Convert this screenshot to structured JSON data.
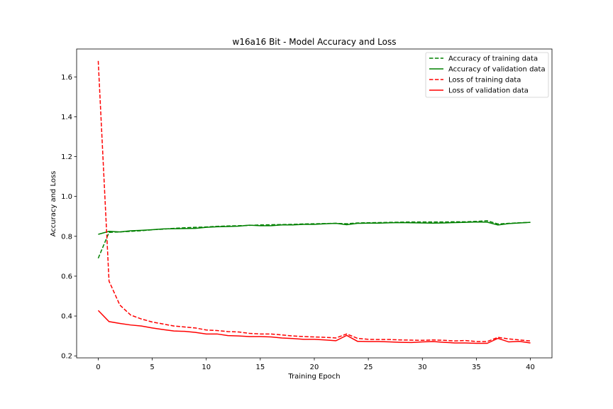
{
  "chart_data": {
    "type": "line",
    "title": "w16a16 Bit - Model Accuracy and Loss",
    "xlabel": "Training Epoch",
    "ylabel": "Accuracy and Loss",
    "xlim": [
      -2,
      42
    ],
    "ylim": [
      0.19,
      1.74
    ],
    "xticks": [
      0,
      5,
      10,
      15,
      20,
      25,
      30,
      35,
      40
    ],
    "yticks": [
      0.2,
      0.4,
      0.6,
      0.8,
      1.0,
      1.2,
      1.4,
      1.6
    ],
    "ytick_labels": [
      "0.2",
      "0.4",
      "0.6",
      "0.8",
      "1.0",
      "1.2",
      "1.4",
      "1.6"
    ],
    "grid": false,
    "legend_position": "top-right",
    "x": [
      0,
      1,
      2,
      3,
      4,
      5,
      6,
      7,
      8,
      9,
      10,
      11,
      12,
      13,
      14,
      15,
      16,
      17,
      18,
      19,
      20,
      21,
      22,
      23,
      24,
      25,
      26,
      27,
      28,
      29,
      30,
      31,
      32,
      33,
      34,
      35,
      36,
      37,
      38,
      39,
      40
    ],
    "series": [
      {
        "name": "Accuracy of training data",
        "color": "#008000",
        "dash": "dashed",
        "values": [
          0.69,
          0.82,
          0.822,
          0.825,
          0.828,
          0.833,
          0.836,
          0.84,
          0.843,
          0.845,
          0.847,
          0.85,
          0.852,
          0.853,
          0.855,
          0.857,
          0.858,
          0.859,
          0.86,
          0.862,
          0.863,
          0.864,
          0.865,
          0.863,
          0.867,
          0.868,
          0.869,
          0.87,
          0.871,
          0.872,
          0.872,
          0.872,
          0.872,
          0.873,
          0.873,
          0.875,
          0.878,
          0.862,
          0.865,
          0.868,
          0.87
        ]
      },
      {
        "name": "Accuracy of validation data",
        "color": "#008000",
        "dash": "solid",
        "values": [
          0.81,
          0.825,
          0.822,
          0.828,
          0.83,
          0.833,
          0.837,
          0.838,
          0.839,
          0.84,
          0.845,
          0.848,
          0.849,
          0.851,
          0.856,
          0.853,
          0.853,
          0.857,
          0.857,
          0.86,
          0.86,
          0.863,
          0.865,
          0.858,
          0.865,
          0.866,
          0.866,
          0.868,
          0.869,
          0.868,
          0.867,
          0.866,
          0.867,
          0.869,
          0.87,
          0.872,
          0.871,
          0.857,
          0.864,
          0.867,
          0.87
        ]
      },
      {
        "name": "Loss of training data",
        "color": "#ff0000",
        "dash": "dashed",
        "values": [
          1.68,
          0.575,
          0.455,
          0.405,
          0.385,
          0.37,
          0.36,
          0.35,
          0.345,
          0.34,
          0.33,
          0.327,
          0.322,
          0.32,
          0.313,
          0.31,
          0.31,
          0.305,
          0.3,
          0.297,
          0.295,
          0.293,
          0.29,
          0.31,
          0.288,
          0.283,
          0.282,
          0.282,
          0.28,
          0.279,
          0.278,
          0.28,
          0.278,
          0.275,
          0.277,
          0.272,
          0.272,
          0.293,
          0.285,
          0.28,
          0.275
        ]
      },
      {
        "name": "Loss of validation data",
        "color": "#ff0000",
        "dash": "solid",
        "values": [
          0.428,
          0.372,
          0.363,
          0.355,
          0.35,
          0.34,
          0.332,
          0.325,
          0.323,
          0.318,
          0.31,
          0.31,
          0.302,
          0.3,
          0.297,
          0.297,
          0.295,
          0.29,
          0.287,
          0.283,
          0.283,
          0.28,
          0.276,
          0.303,
          0.273,
          0.272,
          0.272,
          0.27,
          0.268,
          0.267,
          0.27,
          0.272,
          0.268,
          0.265,
          0.265,
          0.263,
          0.263,
          0.288,
          0.27,
          0.273,
          0.265
        ]
      }
    ]
  }
}
